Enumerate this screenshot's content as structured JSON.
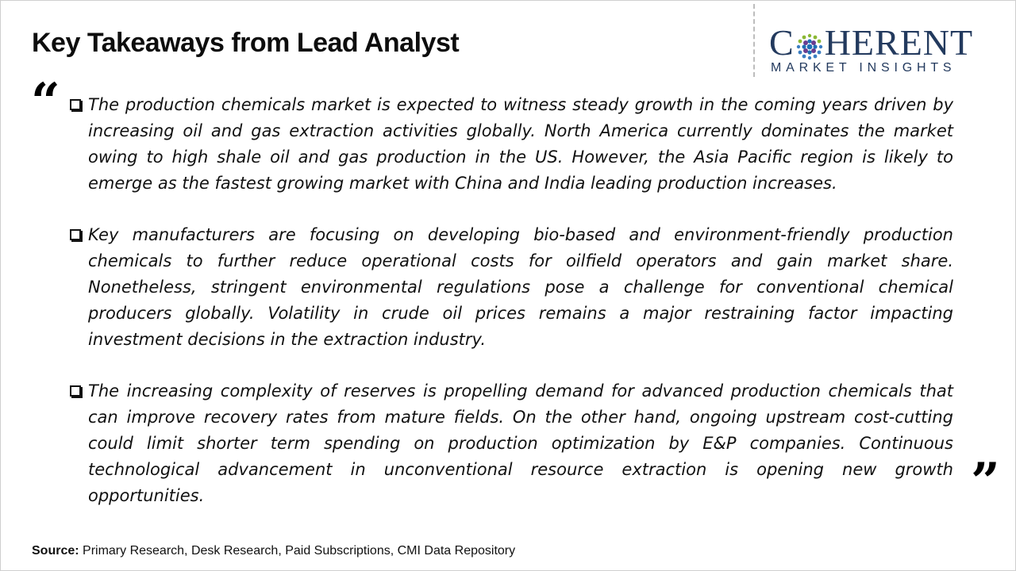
{
  "slide": {
    "title": "Key Takeaways from Lead Analyst"
  },
  "logo": {
    "text_left": "C",
    "text_right": "HERENT",
    "subtitle": "MARKET INSIGHTS",
    "color": "#233a5e",
    "icon": "globe-dots-icon"
  },
  "quotes": {
    "open": "“",
    "close": "”"
  },
  "takeaways": [
    {
      "text": "The production chemicals market is expected to witness steady growth in the coming years driven by increasing oil and gas extraction activities globally. North America currently dominates the market owing to high shale oil and gas production in the US. However, the Asia Pacific region is likely to emerge as the fastest growing market with China and India leading production increases."
    },
    {
      "text": "Key manufacturers are focusing on developing bio-based and environment-friendly production chemicals to further reduce operational costs for oilfield operators and gain market share. Nonetheless, stringent environmental regulations pose a challenge for conventional chemical producers globally. Volatility in crude oil prices remains a major restraining factor impacting investment decisions in the extraction industry."
    },
    {
      "text": "The increasing complexity of reserves is propelling demand for advanced production chemicals that can improve recovery rates from mature fields. On the other hand, ongoing upstream cost-cutting could limit shorter term spending on production optimization by E&P companies. Continuous technological advancement in unconventional resource extraction is opening new growth opportunities."
    }
  ],
  "source": {
    "label": "Source:",
    "text": " Primary Research, Desk Research, Paid Subscriptions, CMI Data Repository"
  }
}
